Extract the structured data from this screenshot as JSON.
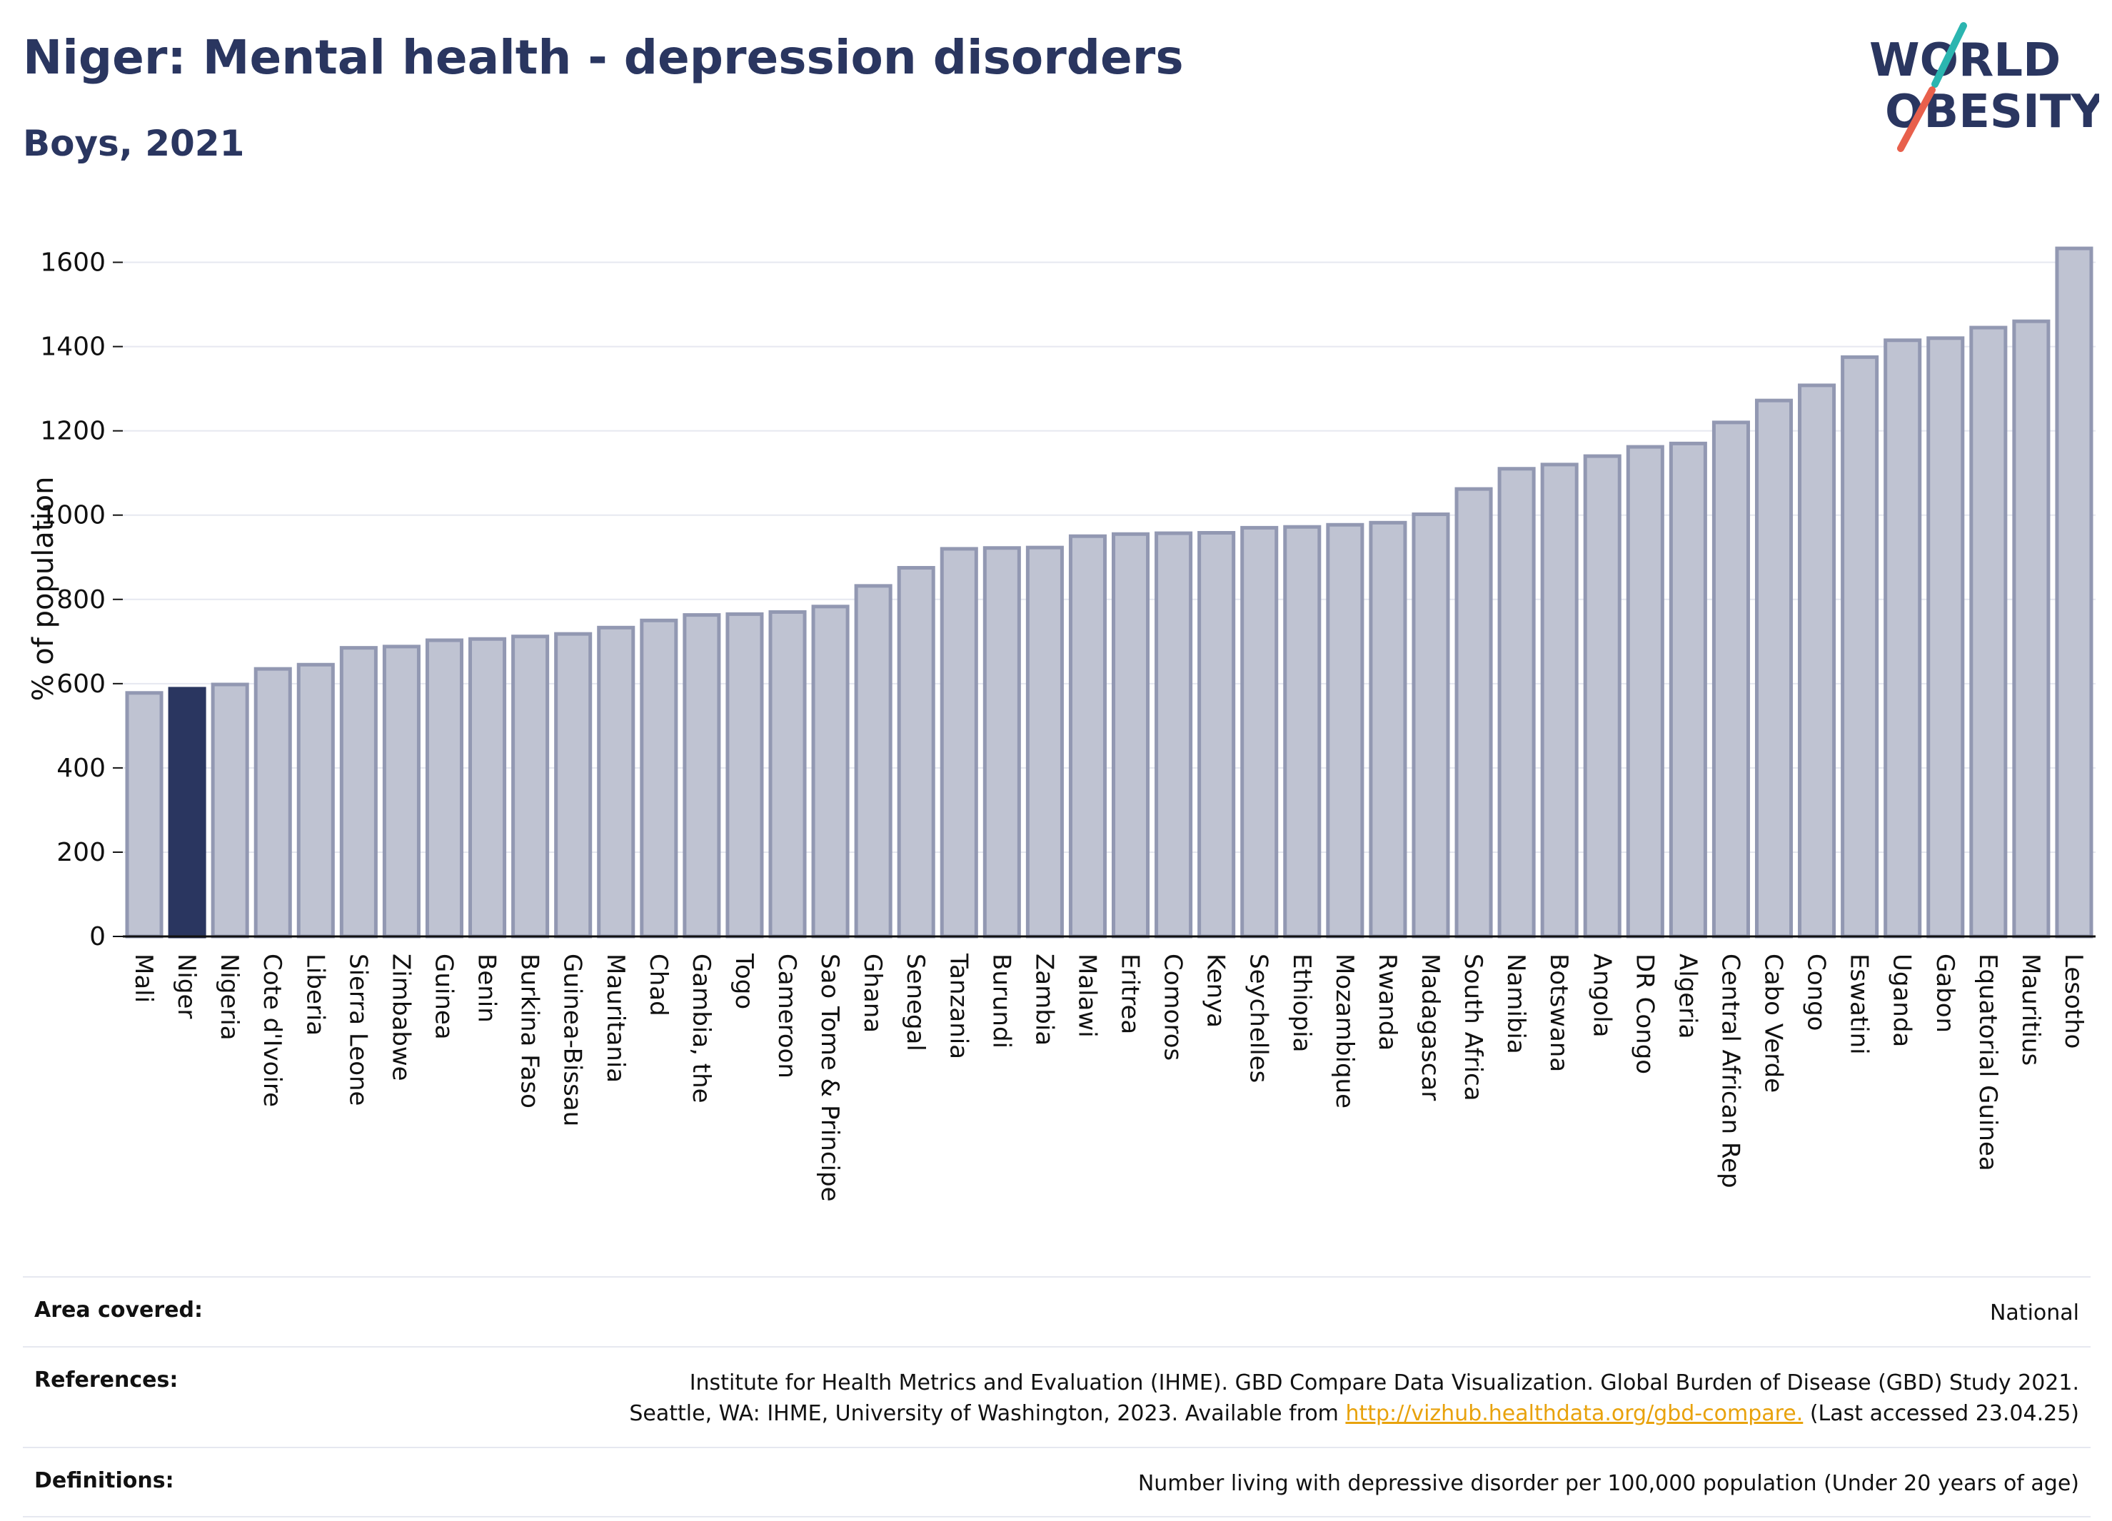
{
  "header": {
    "title": "Niger: Mental health - depression disorders",
    "subtitle": "Boys, 2021"
  },
  "logo": {
    "line1": "WORLD",
    "line2": "OBESITY"
  },
  "colors": {
    "primary": "#2a3660",
    "highlight_bar": "#2a3660",
    "other_bar_fill": "#bfc3d2",
    "other_bar_stroke": "#9298b2",
    "logo_accent_teal": "#2bb5b0",
    "logo_accent_red": "#e8604c",
    "link": "#e8a20c"
  },
  "chart_data": {
    "type": "bar",
    "title": "Niger: Mental health - depression disorders",
    "subtitle": "Boys, 2021",
    "xlabel": "",
    "ylabel": "% of population",
    "ylim": [
      0,
      1650
    ],
    "yticks": [
      0,
      200,
      400,
      600,
      800,
      1000,
      1200,
      1400,
      1600
    ],
    "grid": true,
    "highlight": "Niger",
    "categories": [
      "Mali",
      "Niger",
      "Nigeria",
      "Cote d'Ivoire",
      "Liberia",
      "Sierra Leone",
      "Zimbabwe",
      "Guinea",
      "Benin",
      "Burkina Faso",
      "Guinea-Bissau",
      "Mauritania",
      "Chad",
      "Gambia, the",
      "Togo",
      "Cameroon",
      "Sao Tome & Principe",
      "Ghana",
      "Senegal",
      "Tanzania",
      "Burundi",
      "Zambia",
      "Malawi",
      "Eritrea",
      "Comoros",
      "Kenya",
      "Seychelles",
      "Ethiopia",
      "Mozambique",
      "Rwanda",
      "Madagascar",
      "South Africa",
      "Namibia",
      "Botswana",
      "Angola",
      "DR Congo",
      "Algeria",
      "Central African Rep",
      "Cabo Verde",
      "Congo",
      "Eswatini",
      "Uganda",
      "Gabon",
      "Equatorial Guinea",
      "Mauritius",
      "Lesotho"
    ],
    "values": [
      578,
      588,
      598,
      635,
      645,
      685,
      688,
      703,
      706,
      712,
      718,
      733,
      750,
      763,
      765,
      770,
      783,
      832,
      875,
      920,
      922,
      923,
      950,
      955,
      957,
      958,
      970,
      972,
      977,
      982,
      1002,
      1062,
      1110,
      1120,
      1140,
      1162,
      1170,
      1220,
      1272,
      1308,
      1375,
      1415,
      1420,
      1445,
      1460,
      1633
    ]
  },
  "footer": {
    "area_label": "Area covered:",
    "area_value": "National",
    "references_label": "References:",
    "references_line1": "Institute for Health Metrics and Evaluation (IHME). GBD Compare Data Visualization. Global Burden of Disease (GBD) Study 2021.",
    "references_line2_pre": "Seattle, WA: IHME, University of Washington, 2023. Available from ",
    "references_link": "http://vizhub.healthdata.org/gbd-compare.",
    "references_line2_post": " (Last accessed 23.04.25)",
    "definitions_label": "Definitions:",
    "definitions_value": "Number living with depressive disorder per 100,000 population (Under 20 years of age)"
  }
}
